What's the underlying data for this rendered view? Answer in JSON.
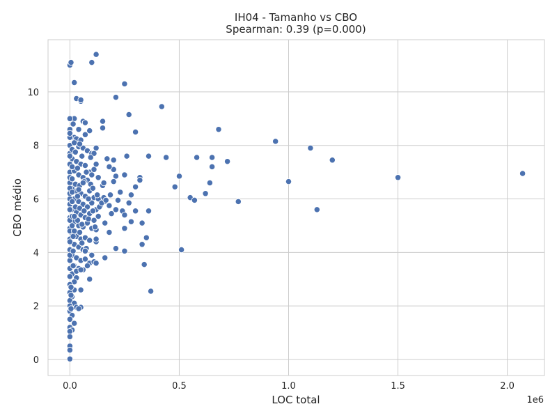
{
  "chart_data": {
    "type": "scatter",
    "title": "IH04 - Tamanho vs CBO",
    "subtitle": "Spearman: 0.39 (p=0.000)",
    "xlabel": "LOC total",
    "ylabel": "CBO médio",
    "x_offset_label": "1e6",
    "xlim": [
      -0.1,
      2.17
    ],
    "ylim": [
      -0.6,
      11.95
    ],
    "x_ticks": [
      0.0,
      0.5,
      1.0,
      1.5,
      2.0
    ],
    "x_tick_labels": [
      "0.0",
      "0.5",
      "1.0",
      "1.5",
      "2.0"
    ],
    "y_ticks": [
      0,
      2,
      4,
      6,
      8,
      10
    ],
    "y_tick_labels": [
      "0",
      "2",
      "4",
      "6",
      "8",
      "10"
    ],
    "grid": true,
    "marker_color": "#4c72b0",
    "points": [
      [
        0.12,
        11.4
      ],
      [
        0.0,
        11.0
      ],
      [
        0.005,
        11.1
      ],
      [
        0.02,
        10.35
      ],
      [
        0.1,
        11.1
      ],
      [
        0.25,
        10.3
      ],
      [
        0.03,
        9.75
      ],
      [
        0.05,
        9.65
      ],
      [
        0.05,
        9.7
      ],
      [
        0.21,
        9.8
      ],
      [
        0.42,
        9.45
      ],
      [
        0.27,
        9.15
      ],
      [
        0.0,
        9.0
      ],
      [
        0.02,
        9.0
      ],
      [
        0.06,
        8.9
      ],
      [
        0.07,
        8.85
      ],
      [
        0.15,
        8.9
      ],
      [
        0.15,
        8.65
      ],
      [
        0.3,
        8.5
      ],
      [
        0.68,
        8.6
      ],
      [
        0.0,
        8.6
      ],
      [
        0.04,
        8.6
      ],
      [
        0.09,
        8.55
      ],
      [
        0.02,
        8.3
      ],
      [
        0.0,
        8.3
      ],
      [
        0.03,
        8.25
      ],
      [
        0.05,
        8.2
      ],
      [
        0.07,
        8.4
      ],
      [
        0.0,
        8.0
      ],
      [
        0.02,
        8.1
      ],
      [
        0.04,
        7.95
      ],
      [
        0.06,
        7.9
      ],
      [
        0.08,
        7.8
      ],
      [
        0.1,
        7.7
      ],
      [
        0.12,
        7.9
      ],
      [
        0.11,
        7.7
      ],
      [
        0.94,
        8.15
      ],
      [
        1.1,
        7.9
      ],
      [
        1.2,
        7.45
      ],
      [
        0.72,
        7.4
      ],
      [
        0.58,
        7.55
      ],
      [
        0.65,
        7.55
      ],
      [
        0.65,
        7.2
      ],
      [
        0.36,
        7.6
      ],
      [
        0.44,
        7.55
      ],
      [
        0.26,
        7.6
      ],
      [
        0.17,
        7.5
      ],
      [
        0.2,
        7.45
      ],
      [
        0.2,
        7.1
      ],
      [
        0.18,
        7.2
      ],
      [
        0.0,
        7.7
      ],
      [
        0.01,
        7.5
      ],
      [
        0.03,
        7.4
      ],
      [
        0.05,
        7.3
      ],
      [
        0.07,
        7.25
      ],
      [
        0.09,
        7.0
      ],
      [
        0.11,
        7.1
      ],
      [
        0.12,
        7.3
      ],
      [
        0.0,
        7.0
      ],
      [
        0.02,
        7.05
      ],
      [
        0.04,
        6.9
      ],
      [
        0.06,
        6.8
      ],
      [
        0.08,
        6.7
      ],
      [
        0.1,
        6.9
      ],
      [
        0.13,
        6.8
      ],
      [
        0.15,
        6.5
      ],
      [
        0.21,
        6.85
      ],
      [
        0.25,
        6.9
      ],
      [
        0.32,
        6.8
      ],
      [
        0.32,
        6.7
      ],
      [
        0.5,
        6.85
      ],
      [
        0.48,
        6.45
      ],
      [
        0.64,
        6.6
      ],
      [
        1.0,
        6.65
      ],
      [
        1.5,
        6.8
      ],
      [
        2.07,
        6.95
      ],
      [
        0.3,
        6.45
      ],
      [
        0.28,
        6.15
      ],
      [
        0.23,
        6.25
      ],
      [
        0.2,
        6.65
      ],
      [
        0.0,
        6.6
      ],
      [
        0.01,
        6.4
      ],
      [
        0.03,
        6.3
      ],
      [
        0.05,
        6.2
      ],
      [
        0.07,
        6.1
      ],
      [
        0.09,
        6.3
      ],
      [
        0.11,
        6.05
      ],
      [
        0.13,
        6.0
      ],
      [
        0.0,
        6.2
      ],
      [
        0.02,
        6.0
      ],
      [
        0.04,
        5.9
      ],
      [
        0.06,
        5.8
      ],
      [
        0.08,
        5.7
      ],
      [
        0.1,
        5.85
      ],
      [
        0.12,
        5.6
      ],
      [
        0.14,
        5.75
      ],
      [
        0.16,
        5.9
      ],
      [
        0.18,
        5.75
      ],
      [
        0.22,
        5.95
      ],
      [
        0.24,
        5.55
      ],
      [
        0.27,
        5.85
      ],
      [
        0.3,
        5.55
      ],
      [
        0.36,
        5.55
      ],
      [
        0.55,
        6.05
      ],
      [
        0.57,
        5.95
      ],
      [
        0.62,
        6.2
      ],
      [
        0.77,
        5.9
      ],
      [
        1.13,
        5.6
      ],
      [
        0.19,
        5.45
      ],
      [
        0.21,
        5.6
      ],
      [
        0.0,
        5.8
      ],
      [
        0.01,
        5.6
      ],
      [
        0.03,
        5.5
      ],
      [
        0.05,
        5.4
      ],
      [
        0.07,
        5.3
      ],
      [
        0.09,
        5.45
      ],
      [
        0.11,
        5.2
      ],
      [
        0.13,
        5.35
      ],
      [
        0.0,
        5.3
      ],
      [
        0.02,
        5.15
      ],
      [
        0.04,
        5.0
      ],
      [
        0.06,
        4.95
      ],
      [
        0.08,
        5.1
      ],
      [
        0.1,
        4.9
      ],
      [
        0.12,
        4.85
      ],
      [
        0.16,
        5.1
      ],
      [
        0.25,
        5.4
      ],
      [
        0.28,
        5.15
      ],
      [
        0.33,
        5.1
      ],
      [
        0.25,
        4.9
      ],
      [
        0.35,
        4.55
      ],
      [
        0.33,
        4.3
      ],
      [
        0.0,
        4.9
      ],
      [
        0.01,
        4.7
      ],
      [
        0.03,
        4.6
      ],
      [
        0.05,
        4.5
      ],
      [
        0.07,
        4.55
      ],
      [
        0.09,
        4.45
      ],
      [
        0.12,
        4.4
      ],
      [
        0.18,
        4.75
      ],
      [
        0.0,
        4.5
      ],
      [
        0.02,
        4.3
      ],
      [
        0.04,
        4.2
      ],
      [
        0.06,
        4.1
      ],
      [
        0.1,
        3.9
      ],
      [
        0.12,
        4.5
      ],
      [
        0.21,
        4.15
      ],
      [
        0.25,
        4.05
      ],
      [
        0.0,
        4.1
      ],
      [
        0.01,
        3.9
      ],
      [
        0.03,
        3.8
      ],
      [
        0.05,
        3.7
      ],
      [
        0.07,
        3.75
      ],
      [
        0.09,
        3.6
      ],
      [
        0.11,
        3.65
      ],
      [
        0.16,
        3.8
      ],
      [
        0.0,
        3.7
      ],
      [
        0.02,
        3.5
      ],
      [
        0.04,
        3.4
      ],
      [
        0.06,
        3.35
      ],
      [
        0.08,
        3.5
      ],
      [
        0.12,
        3.6
      ],
      [
        0.34,
        3.55
      ],
      [
        0.51,
        4.1
      ],
      [
        0.0,
        3.4
      ],
      [
        0.01,
        3.2
      ],
      [
        0.03,
        3.05
      ],
      [
        0.09,
        3.0
      ],
      [
        0.0,
        3.1
      ],
      [
        0.02,
        2.9
      ],
      [
        0.0,
        2.8
      ],
      [
        0.02,
        2.6
      ],
      [
        0.05,
        2.6
      ],
      [
        0.37,
        2.55
      ],
      [
        0.0,
        2.5
      ],
      [
        0.01,
        2.35
      ],
      [
        0.0,
        2.2
      ],
      [
        0.02,
        2.1
      ],
      [
        0.0,
        2.0
      ],
      [
        0.03,
        1.95
      ],
      [
        0.05,
        1.95
      ],
      [
        0.04,
        1.9
      ],
      [
        0.0,
        1.8
      ],
      [
        0.01,
        1.65
      ],
      [
        0.0,
        1.5
      ],
      [
        0.02,
        1.35
      ],
      [
        0.0,
        1.2
      ],
      [
        0.01,
        1.1
      ],
      [
        0.0,
        1.05
      ],
      [
        0.0,
        0.85
      ],
      [
        0.0,
        0.5
      ],
      [
        0.0,
        0.35
      ],
      [
        0.0,
        0.02
      ],
      [
        0.0,
        6.8
      ],
      [
        0.0,
        6.4
      ],
      [
        0.0,
        6.0
      ],
      [
        0.0,
        5.6
      ],
      [
        0.0,
        5.2
      ],
      [
        0.0,
        4.8
      ],
      [
        0.0,
        4.4
      ],
      [
        0.0,
        3.9
      ],
      [
        0.0,
        7.3
      ],
      [
        0.0,
        7.6
      ],
      [
        0.0,
        8.45
      ],
      [
        0.0,
        9.0
      ],
      [
        0.005,
        2.7
      ],
      [
        0.005,
        2.4
      ],
      [
        0.005,
        1.9
      ],
      [
        0.01,
        5.0
      ],
      [
        0.01,
        5.35
      ],
      [
        0.01,
        5.9
      ],
      [
        0.01,
        6.25
      ],
      [
        0.01,
        6.75
      ],
      [
        0.01,
        7.2
      ],
      [
        0.01,
        7.85
      ],
      [
        0.015,
        3.5
      ],
      [
        0.015,
        4.05
      ],
      [
        0.015,
        4.6
      ],
      [
        0.015,
        8.8
      ],
      [
        0.025,
        5.7
      ],
      [
        0.025,
        6.55
      ],
      [
        0.025,
        7.75
      ],
      [
        0.035,
        5.2
      ],
      [
        0.035,
        6.1
      ],
      [
        0.035,
        7.15
      ],
      [
        0.045,
        4.75
      ],
      [
        0.045,
        5.65
      ],
      [
        0.045,
        6.5
      ],
      [
        0.045,
        8.05
      ],
      [
        0.055,
        4.35
      ],
      [
        0.055,
        5.05
      ],
      [
        0.055,
        7.6
      ],
      [
        0.065,
        5.55
      ],
      [
        0.065,
        6.65
      ],
      [
        0.075,
        4.15
      ],
      [
        0.075,
        7.0
      ],
      [
        0.085,
        6.0
      ],
      [
        0.085,
        5.25
      ],
      [
        0.095,
        6.55
      ],
      [
        0.095,
        7.55
      ],
      [
        0.105,
        5.55
      ],
      [
        0.105,
        6.4
      ],
      [
        0.115,
        4.95
      ],
      [
        0.125,
        6.15
      ],
      [
        0.135,
        5.7
      ],
      [
        0.145,
        5.85
      ],
      [
        0.155,
        6.05
      ],
      [
        0.155,
        6.6
      ],
      [
        0.165,
        5.95
      ],
      [
        0.185,
        6.15
      ],
      [
        0.04,
        6.35
      ],
      [
        0.06,
        6.6
      ],
      [
        0.02,
        4.8
      ],
      [
        0.03,
        3.3
      ],
      [
        0.05,
        3.35
      ],
      [
        0.07,
        4.05
      ],
      [
        0.02,
        5.35
      ]
    ]
  }
}
